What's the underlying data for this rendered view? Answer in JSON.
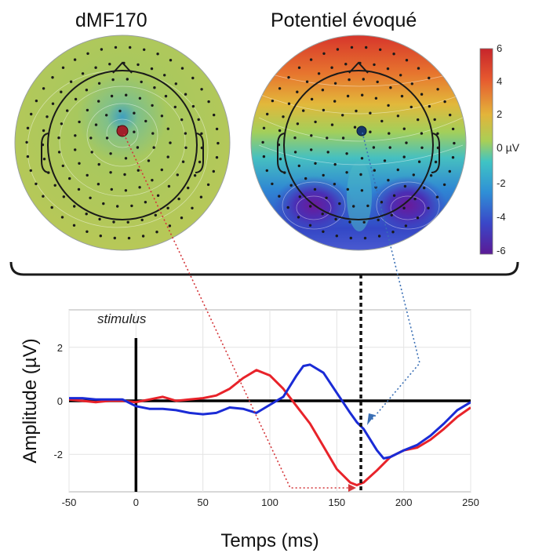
{
  "topomaps": [
    {
      "title": "dMF170",
      "colormap": "green-yellow, near zero",
      "peak_color": "#a0202a"
    },
    {
      "title": "Potentiel évoqué",
      "colormap": "jet, frontal positive / occipital negative",
      "peak_color": "#16386b"
    }
  ],
  "colorbar": {
    "unit_label": "0 µV",
    "ticks": [
      "6",
      "4",
      "2",
      "-2",
      "-4",
      "-6"
    ],
    "range": [
      -6,
      6
    ],
    "colors": [
      "#5b1a96",
      "#3a47c8",
      "#2f8fd6",
      "#3fc4c4",
      "#a9cf56",
      "#e3b43a",
      "#e6592f",
      "#c7252b"
    ]
  },
  "chart_data": {
    "type": "line",
    "stimulus_label": "stimulus",
    "xlabel": "Temps (ms)",
    "ylabel": "Amplitude (µV)",
    "xlim": [
      -50,
      250
    ],
    "ylim": [
      -3.4,
      3.4
    ],
    "xticks": [
      "-50",
      "0",
      "50",
      "100",
      "150",
      "200",
      "250"
    ],
    "yticks": [
      "2",
      "0",
      "-2"
    ],
    "grid": true,
    "stimulus_x": 0,
    "marker_x": 168,
    "series": [
      {
        "color": "#e8232a",
        "x": [
          -50,
          -40,
          -30,
          -20,
          -10,
          0,
          10,
          20,
          30,
          40,
          50,
          60,
          70,
          80,
          90,
          100,
          110,
          120,
          130,
          140,
          150,
          160,
          165,
          170,
          180,
          190,
          200,
          210,
          220,
          230,
          240,
          250
        ],
        "y": [
          0.05,
          0.0,
          -0.05,
          0.0,
          0.0,
          -0.05,
          0.05,
          0.15,
          0.0,
          0.05,
          0.1,
          0.2,
          0.45,
          0.85,
          1.15,
          0.95,
          0.45,
          -0.2,
          -0.85,
          -1.7,
          -2.55,
          -3.05,
          -3.15,
          -3.05,
          -2.6,
          -2.1,
          -1.85,
          -1.75,
          -1.45,
          -1.05,
          -0.6,
          -0.25
        ]
      },
      {
        "color": "#1a2bd6",
        "x": [
          -50,
          -40,
          -30,
          -20,
          -10,
          0,
          10,
          20,
          30,
          40,
          50,
          60,
          70,
          80,
          90,
          100,
          110,
          120,
          125,
          130,
          140,
          150,
          160,
          165,
          170,
          180,
          185,
          190,
          200,
          210,
          220,
          230,
          240,
          250
        ],
        "y": [
          0.1,
          0.1,
          0.05,
          0.05,
          0.05,
          -0.2,
          -0.3,
          -0.3,
          -0.35,
          -0.45,
          -0.5,
          -0.45,
          -0.25,
          -0.3,
          -0.45,
          -0.15,
          0.15,
          0.95,
          1.3,
          1.35,
          1.05,
          0.3,
          -0.45,
          -0.8,
          -1.05,
          -1.85,
          -2.15,
          -2.1,
          -1.85,
          -1.65,
          -1.3,
          -0.85,
          -0.35,
          -0.05
        ]
      }
    ]
  }
}
